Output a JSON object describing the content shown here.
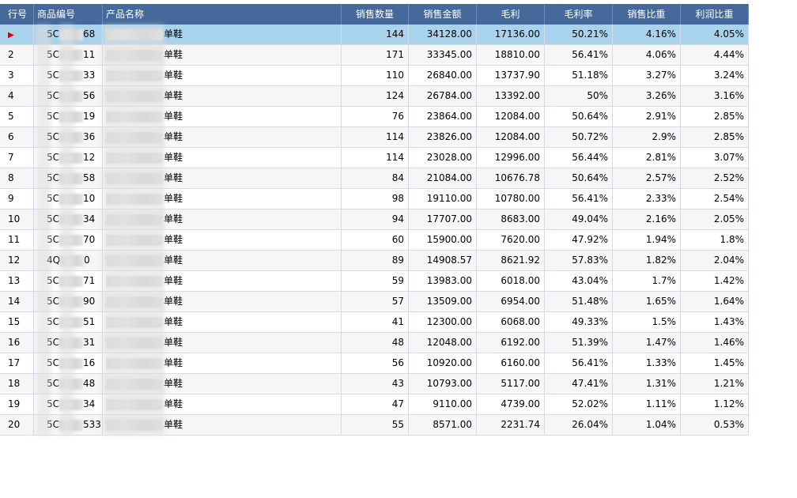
{
  "table": {
    "headers": [
      "行号",
      "商品编号",
      "产品名称",
      "销售数量",
      "销售金额",
      "毛利",
      "毛利率",
      "销售比重",
      "利润比重"
    ],
    "rows": [
      {
        "no": "",
        "code_a": "5C",
        "code_b": "68",
        "name": "单鞋",
        "qty": "144",
        "amount": "34128.00",
        "profit": "17136.00",
        "margin": "50.21%",
        "sales_ratio": "4.16%",
        "profit_ratio": "4.05%"
      },
      {
        "no": "2",
        "code_a": "5C",
        "code_b": "11",
        "name": "单鞋",
        "qty": "171",
        "amount": "33345.00",
        "profit": "18810.00",
        "margin": "56.41%",
        "sales_ratio": "4.06%",
        "profit_ratio": "4.44%"
      },
      {
        "no": "3",
        "code_a": "5C",
        "code_b": "33",
        "name": "单鞋",
        "qty": "110",
        "amount": "26840.00",
        "profit": "13737.90",
        "margin": "51.18%",
        "sales_ratio": "3.27%",
        "profit_ratio": "3.24%"
      },
      {
        "no": "4",
        "code_a": "5C",
        "code_b": "56",
        "name": "单鞋",
        "qty": "124",
        "amount": "26784.00",
        "profit": "13392.00",
        "margin": "50%",
        "sales_ratio": "3.26%",
        "profit_ratio": "3.16%"
      },
      {
        "no": "5",
        "code_a": "5C",
        "code_b": "19",
        "name": "单鞋",
        "qty": "76",
        "amount": "23864.00",
        "profit": "12084.00",
        "margin": "50.64%",
        "sales_ratio": "2.91%",
        "profit_ratio": "2.85%"
      },
      {
        "no": "6",
        "code_a": "5C",
        "code_b": "36",
        "name": "单鞋",
        "qty": "114",
        "amount": "23826.00",
        "profit": "12084.00",
        "margin": "50.72%",
        "sales_ratio": "2.9%",
        "profit_ratio": "2.85%"
      },
      {
        "no": "7",
        "code_a": "5C",
        "code_b": "12",
        "name": "单鞋",
        "qty": "114",
        "amount": "23028.00",
        "profit": "12996.00",
        "margin": "56.44%",
        "sales_ratio": "2.81%",
        "profit_ratio": "3.07%"
      },
      {
        "no": "8",
        "code_a": "5C",
        "code_b": "58",
        "name": "单鞋",
        "qty": "84",
        "amount": "21084.00",
        "profit": "10676.78",
        "margin": "50.64%",
        "sales_ratio": "2.57%",
        "profit_ratio": "2.52%"
      },
      {
        "no": "9",
        "code_a": "5C",
        "code_b": "10",
        "name": "单鞋",
        "qty": "98",
        "amount": "19110.00",
        "profit": "10780.00",
        "margin": "56.41%",
        "sales_ratio": "2.33%",
        "profit_ratio": "2.54%"
      },
      {
        "no": "10",
        "code_a": "5C",
        "code_b": "34",
        "name": "单鞋",
        "qty": "94",
        "amount": "17707.00",
        "profit": "8683.00",
        "margin": "49.04%",
        "sales_ratio": "2.16%",
        "profit_ratio": "2.05%"
      },
      {
        "no": "11",
        "code_a": "5C",
        "code_b": "70",
        "name": "单鞋",
        "qty": "60",
        "amount": "15900.00",
        "profit": "7620.00",
        "margin": "47.92%",
        "sales_ratio": "1.94%",
        "profit_ratio": "1.8%"
      },
      {
        "no": "12",
        "code_a": "4Q",
        "code_b": "0",
        "name": "单鞋",
        "qty": "89",
        "amount": "14908.57",
        "profit": "8621.92",
        "margin": "57.83%",
        "sales_ratio": "1.82%",
        "profit_ratio": "2.04%"
      },
      {
        "no": "13",
        "code_a": "5C",
        "code_b": "71",
        "name": "单鞋",
        "qty": "59",
        "amount": "13983.00",
        "profit": "6018.00",
        "margin": "43.04%",
        "sales_ratio": "1.7%",
        "profit_ratio": "1.42%"
      },
      {
        "no": "14",
        "code_a": "5C",
        "code_b": "90",
        "name": "单鞋",
        "qty": "57",
        "amount": "13509.00",
        "profit": "6954.00",
        "margin": "51.48%",
        "sales_ratio": "1.65%",
        "profit_ratio": "1.64%"
      },
      {
        "no": "15",
        "code_a": "5C",
        "code_b": "51",
        "name": "单鞋",
        "qty": "41",
        "amount": "12300.00",
        "profit": "6068.00",
        "margin": "49.33%",
        "sales_ratio": "1.5%",
        "profit_ratio": "1.43%"
      },
      {
        "no": "16",
        "code_a": "5C",
        "code_b": "31",
        "name": "单鞋",
        "qty": "48",
        "amount": "12048.00",
        "profit": "6192.00",
        "margin": "51.39%",
        "sales_ratio": "1.47%",
        "profit_ratio": "1.46%"
      },
      {
        "no": "17",
        "code_a": "5C",
        "code_b": "16",
        "name": "单鞋",
        "qty": "56",
        "amount": "10920.00",
        "profit": "6160.00",
        "margin": "56.41%",
        "sales_ratio": "1.33%",
        "profit_ratio": "1.45%"
      },
      {
        "no": "18",
        "code_a": "5C",
        "code_b": "48",
        "name": "单鞋",
        "qty": "43",
        "amount": "10793.00",
        "profit": "5117.00",
        "margin": "47.41%",
        "sales_ratio": "1.31%",
        "profit_ratio": "1.21%"
      },
      {
        "no": "19",
        "code_a": "5C",
        "code_b": "34",
        "name": "单鞋",
        "qty": "47",
        "amount": "9110.00",
        "profit": "4739.00",
        "margin": "52.02%",
        "sales_ratio": "1.11%",
        "profit_ratio": "1.12%"
      },
      {
        "no": "20",
        "code_a": "5C",
        "code_b": "533",
        "name": "单鞋",
        "qty": "55",
        "amount": "8571.00",
        "profit": "2231.74",
        "margin": "26.04%",
        "sales_ratio": "1.04%",
        "profit_ratio": "0.53%"
      }
    ],
    "selected_row": 0
  },
  "icons": {
    "row_indicator": "current-row-arrow-icon"
  },
  "colors": {
    "header_bg": "#45699a",
    "selected_row_bg": "#a9d3ed",
    "alt_row_bg": "#f7f5f6",
    "indicator": "#d40000"
  }
}
